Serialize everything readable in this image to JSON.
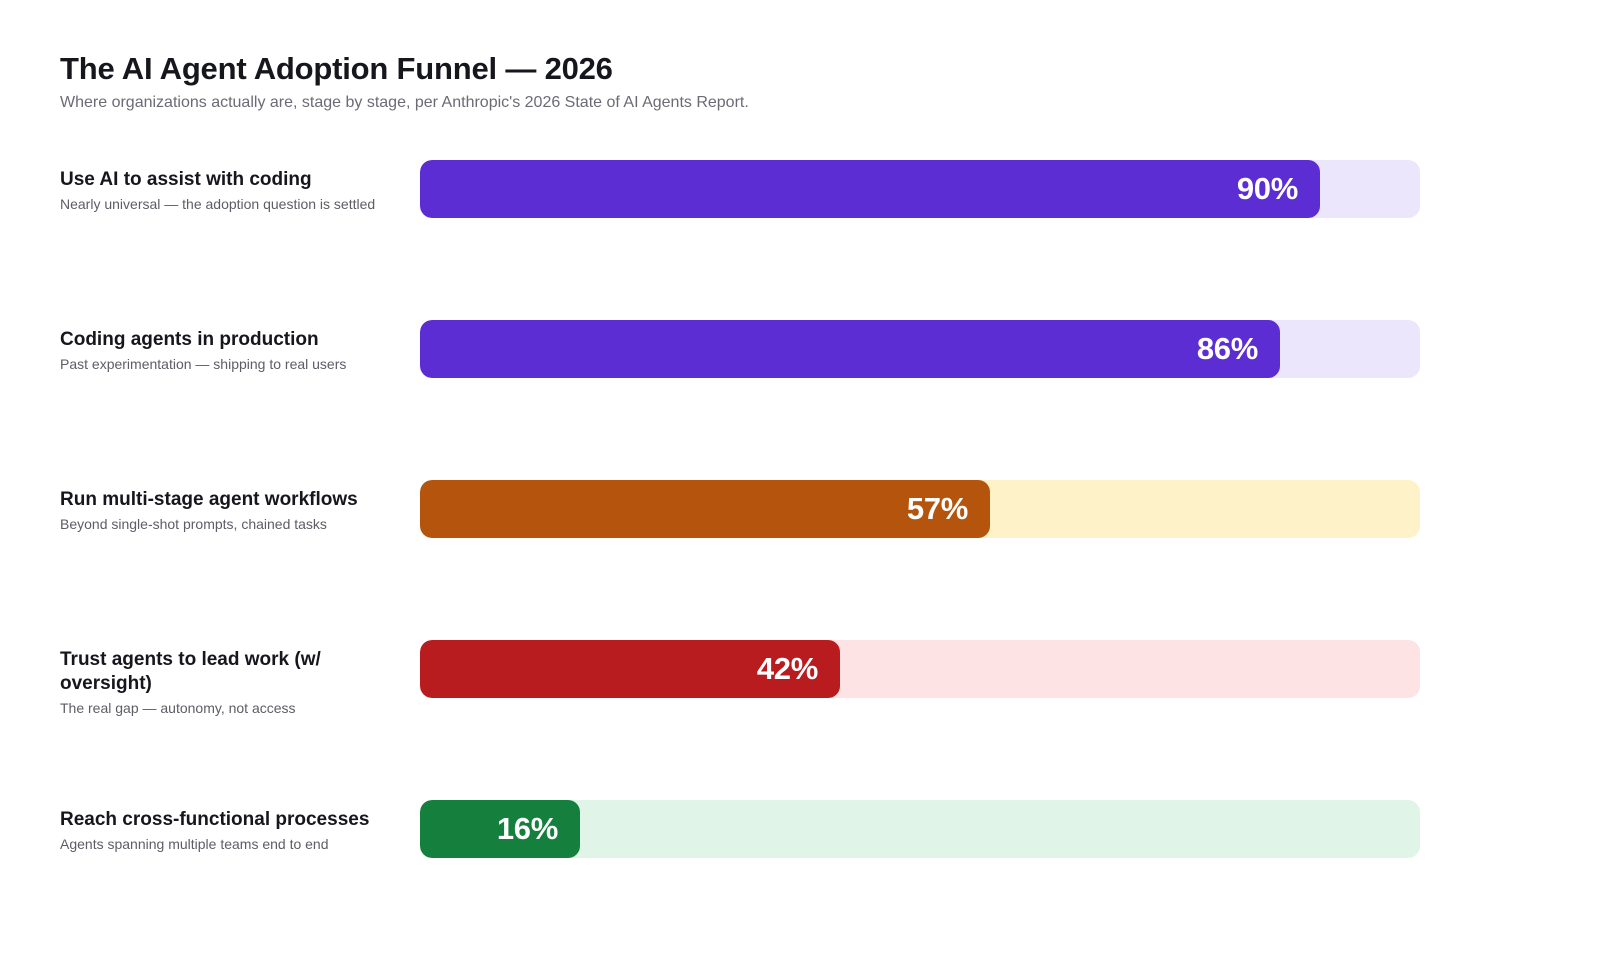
{
  "header": {
    "title": "The AI Agent Adoption Funnel — 2026",
    "subtitle": "Where organizations actually are, stage by stage, per Anthropic's 2026 State of AI Agents Report."
  },
  "chart_data": {
    "type": "bar",
    "orientation": "horizontal",
    "title": "The AI Agent Adoption Funnel — 2026",
    "subtitle": "Where organizations actually are, stage by stage, per Anthropic's 2026 State of AI Agents Report.",
    "xlim": [
      0,
      100
    ],
    "grid": false,
    "categories": [
      "Use AI to assist with coding",
      "Coding agents in production",
      "Run multi-stage agent workflows",
      "Trust agents to lead work (w/ oversight)",
      "Reach cross-functional processes"
    ],
    "values": [
      90,
      86,
      57,
      42,
      16
    ],
    "stages": [
      {
        "label": "Use AI to assist with coding",
        "note": "Nearly universal — the adoption question is settled",
        "value": 90,
        "display": "90%",
        "color": "#5b2dd3",
        "track_color": "#ebe6fb"
      },
      {
        "label": "Coding agents in production",
        "note": "Past experimentation — shipping to real users",
        "value": 86,
        "display": "86%",
        "color": "#5b2dd3",
        "track_color": "#ebe6fb"
      },
      {
        "label": "Run multi-stage agent workflows",
        "note": "Beyond single-shot prompts, chained tasks",
        "value": 57,
        "display": "57%",
        "color": "#b5540c",
        "track_color": "#fef3c8"
      },
      {
        "label": "Trust agents to lead work (w/ oversight)",
        "note": "The real gap — autonomy, not access",
        "value": 42,
        "display": "42%",
        "color": "#b91c1e",
        "track_color": "#fde3e3"
      },
      {
        "label": "Reach cross-functional processes",
        "note": "Agents spanning multiple teams end to end",
        "value": 16,
        "display": "16%",
        "color": "#15803d",
        "track_color": "#e0f5e8"
      }
    ]
  }
}
